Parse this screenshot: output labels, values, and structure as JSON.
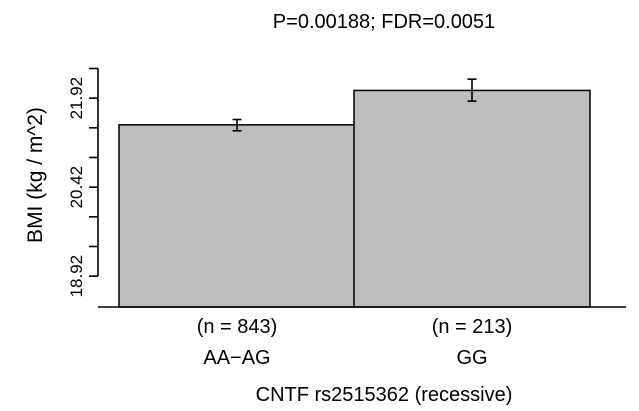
{
  "chart_data": {
    "type": "bar",
    "title": "P=0.00188; FDR=0.0051",
    "ylabel": "BMI (kg / m^2)",
    "xlabel": "CNTF rs2515362 (recessive)",
    "categories": [
      "AA−AG",
      "GG"
    ],
    "counts": [
      "(n = 843)",
      "(n = 213)"
    ],
    "values": [
      21.47,
      22.05
    ],
    "error_low": [
      21.37,
      21.87
    ],
    "error_high": [
      21.56,
      22.24
    ],
    "ylim": [
      18.4,
      22.9
    ],
    "ytick_values": [
      18.92,
      19.42,
      19.92,
      20.42,
      20.92,
      21.42,
      21.92,
      22.42
    ],
    "ytick_labels": [
      "18.92",
      "",
      "",
      "20.42",
      "",
      "",
      "21.92",
      ""
    ],
    "grid": false
  }
}
